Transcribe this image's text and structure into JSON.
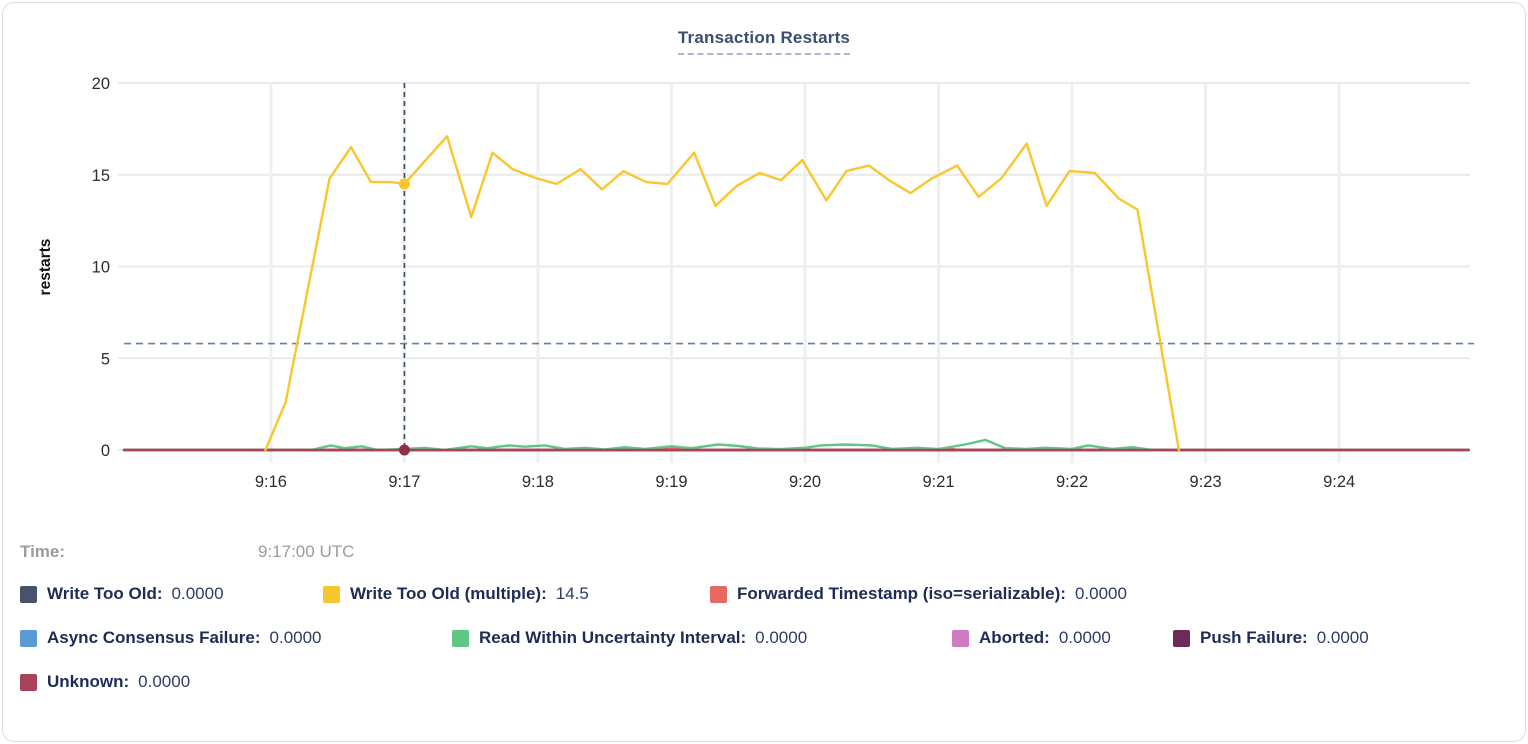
{
  "header": {
    "title": "Transaction Restarts"
  },
  "axis": {
    "ylabel": "restarts",
    "colors": {
      "grid_h": "#e9e9e9",
      "grid_v": "#efefef",
      "tick_text": "#2d2d2d",
      "hover_vline": "#3c536f",
      "hover_hline": "#64809f"
    }
  },
  "tooltip": {
    "time_label": "Time:",
    "time_value": "9:17:00 UTC"
  },
  "legend": {
    "items": [
      {
        "label": "Write Too Old:",
        "value": "0.0000",
        "color": "#46536b"
      },
      {
        "label": "Write Too Old (multiple):",
        "value": "14.5",
        "color": "#f6c62e"
      },
      {
        "label": "Forwarded Timestamp (iso=serializable):",
        "value": "0.0000",
        "color": "#e8695f"
      },
      {
        "label": "Async Consensus Failure:",
        "value": "0.0000",
        "color": "#5b9bd5"
      },
      {
        "label": "Read Within Uncertainty Interval:",
        "value": "0.0000",
        "color": "#60c685"
      },
      {
        "label": "Aborted:",
        "value": "0.0000",
        "color": "#ce7bc2"
      },
      {
        "label": "Push Failure:",
        "value": "0.0000",
        "color": "#6e2a58"
      },
      {
        "label": "Unknown:",
        "value": "0.0000",
        "color": "#a8435c"
      }
    ]
  },
  "chart_data": {
    "type": "line",
    "title": "Transaction Restarts",
    "xlabel": "",
    "ylabel": "restarts",
    "xlim": [
      14.9,
      24.98
    ],
    "ylim": [
      0,
      20
    ],
    "grid": true,
    "legend_position": "bottom",
    "yticks": [
      0,
      5,
      10,
      15,
      20
    ],
    "xticks": [
      {
        "v": 16,
        "label": "9:16"
      },
      {
        "v": 17,
        "label": "9:17"
      },
      {
        "v": 18,
        "label": "9:18"
      },
      {
        "v": 19,
        "label": "9:19"
      },
      {
        "v": 20,
        "label": "9:20"
      },
      {
        "v": 21,
        "label": "9:21"
      },
      {
        "v": 22,
        "label": "9:22"
      },
      {
        "v": 23,
        "label": "9:23"
      },
      {
        "v": 24,
        "label": "9:24"
      }
    ],
    "x_unit": "minutes after 9:00 UTC",
    "series": [
      {
        "name": "Write Too Old",
        "color": "#46536b",
        "points": [
          [
            14.9,
            0
          ],
          [
            24.97,
            0
          ]
        ]
      },
      {
        "name": "Async Consensus Failure",
        "color": "#5b9bd5",
        "points": [
          [
            14.9,
            0
          ],
          [
            24.97,
            0
          ]
        ]
      },
      {
        "name": "Aborted",
        "color": "#ce7bc2",
        "points": [
          [
            14.9,
            0
          ],
          [
            24.97,
            0
          ]
        ]
      },
      {
        "name": "Push Failure",
        "color": "#6e2a58",
        "points": [
          [
            14.9,
            0
          ],
          [
            24.97,
            0
          ]
        ]
      },
      {
        "name": "Forwarded Timestamp (iso=serializable)",
        "color": "#e8695f",
        "points": [
          [
            14.9,
            0
          ],
          [
            18.85,
            0
          ],
          [
            18.95,
            0.12
          ],
          [
            19.05,
            0.1
          ],
          [
            19.15,
            0
          ],
          [
            20.95,
            0
          ],
          [
            21.05,
            0.1
          ],
          [
            21.15,
            0
          ],
          [
            24.97,
            0
          ]
        ]
      },
      {
        "name": "Read Within Uncertainty Interval",
        "color": "#60c685",
        "points": [
          [
            14.9,
            0
          ],
          [
            16.3,
            0
          ],
          [
            16.45,
            0.25
          ],
          [
            16.55,
            0.1
          ],
          [
            16.68,
            0.2
          ],
          [
            16.8,
            0
          ],
          [
            17.0,
            0.06
          ],
          [
            17.15,
            0.12
          ],
          [
            17.3,
            0
          ],
          [
            17.5,
            0.2
          ],
          [
            17.62,
            0.1
          ],
          [
            17.78,
            0.25
          ],
          [
            17.9,
            0.18
          ],
          [
            18.05,
            0.25
          ],
          [
            18.2,
            0.06
          ],
          [
            18.35,
            0.12
          ],
          [
            18.5,
            0.03
          ],
          [
            18.65,
            0.15
          ],
          [
            18.8,
            0.06
          ],
          [
            19.0,
            0.2
          ],
          [
            19.15,
            0.1
          ],
          [
            19.35,
            0.3
          ],
          [
            19.5,
            0.22
          ],
          [
            19.65,
            0.08
          ],
          [
            19.82,
            0.05
          ],
          [
            20.0,
            0.12
          ],
          [
            20.12,
            0.25
          ],
          [
            20.3,
            0.3
          ],
          [
            20.5,
            0.25
          ],
          [
            20.65,
            0.06
          ],
          [
            20.85,
            0.12
          ],
          [
            21.0,
            0.05
          ],
          [
            21.2,
            0.3
          ],
          [
            21.35,
            0.55
          ],
          [
            21.5,
            0.1
          ],
          [
            21.65,
            0.06
          ],
          [
            21.8,
            0.12
          ],
          [
            22.0,
            0.06
          ],
          [
            22.12,
            0.25
          ],
          [
            22.3,
            0.06
          ],
          [
            22.45,
            0.15
          ],
          [
            22.6,
            0
          ],
          [
            24.97,
            0
          ]
        ]
      },
      {
        "name": "Unknown",
        "color": "#a8435c",
        "points": [
          [
            14.9,
            0
          ],
          [
            24.97,
            0
          ]
        ]
      },
      {
        "name": "Write Too Old (multiple)",
        "color": "#f9c62c",
        "points": [
          [
            15.96,
            0
          ],
          [
            16.11,
            2.6
          ],
          [
            16.44,
            14.8
          ],
          [
            16.6,
            16.5
          ],
          [
            16.75,
            14.6
          ],
          [
            16.9,
            14.6
          ],
          [
            17.0,
            14.5
          ],
          [
            17.32,
            17.1
          ],
          [
            17.5,
            12.7
          ],
          [
            17.66,
            16.2
          ],
          [
            17.81,
            15.3
          ],
          [
            17.99,
            14.8
          ],
          [
            18.14,
            14.5
          ],
          [
            18.32,
            15.3
          ],
          [
            18.48,
            14.2
          ],
          [
            18.64,
            15.2
          ],
          [
            18.81,
            14.6
          ],
          [
            18.97,
            14.5
          ],
          [
            19.17,
            16.2
          ],
          [
            19.33,
            13.3
          ],
          [
            19.49,
            14.4
          ],
          [
            19.66,
            15.1
          ],
          [
            19.82,
            14.7
          ],
          [
            19.98,
            15.8
          ],
          [
            20.16,
            13.6
          ],
          [
            20.31,
            15.2
          ],
          [
            20.48,
            15.5
          ],
          [
            20.63,
            14.7
          ],
          [
            20.79,
            14.0
          ],
          [
            20.95,
            14.8
          ],
          [
            21.14,
            15.5
          ],
          [
            21.3,
            13.8
          ],
          [
            21.47,
            14.8
          ],
          [
            21.66,
            16.7
          ],
          [
            21.81,
            13.3
          ],
          [
            21.98,
            15.2
          ],
          [
            22.17,
            15.1
          ],
          [
            22.35,
            13.7
          ],
          [
            22.49,
            13.1
          ],
          [
            22.8,
            0
          ]
        ]
      }
    ],
    "hover": {
      "x": 17.0,
      "time": "9:17:00 UTC",
      "avg_line_y": 5.8,
      "points": [
        {
          "series": "Write Too Old (multiple)",
          "y": 14.5,
          "color": "#f9c62c"
        },
        {
          "series": "Unknown",
          "y": 0,
          "color": "#8f3049"
        }
      ]
    }
  }
}
